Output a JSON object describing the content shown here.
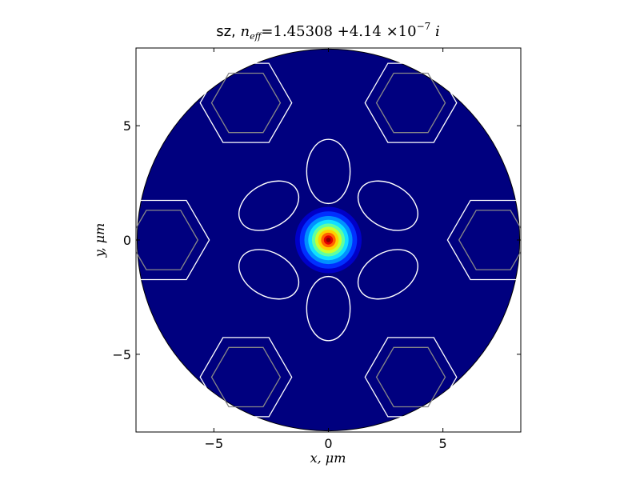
{
  "chart_data": {
    "type": "heatmap",
    "title": {
      "prefix": "sz,",
      "lhs": "n",
      "lhs_sub": "eff",
      "eq": "=",
      "real": "1.45308",
      "plus": "+",
      "imag_mantissa": "4.14",
      "times": "×",
      "base": "10",
      "exponent": "−7",
      "i": "i"
    },
    "xlabel": "x, μm",
    "ylabel": "y, μm",
    "xlim": [
      -8.4,
      8.4
    ],
    "ylim": [
      -8.4,
      8.4
    ],
    "xticks": [
      {
        "value": -5,
        "label": "−5"
      },
      {
        "value": 0,
        "label": "0"
      },
      {
        "value": 5,
        "label": "5"
      }
    ],
    "yticks": [
      {
        "value": -5,
        "label": "−5"
      },
      {
        "value": 0,
        "label": "0"
      },
      {
        "value": 5,
        "label": "5"
      }
    ],
    "grid": false,
    "colormap": "jet",
    "background_color": "#00007f",
    "cladding": {
      "center": [
        0,
        0
      ],
      "radius": 8.35
    },
    "mode_field": {
      "center": [
        0,
        0
      ],
      "peak_color": "#8b0000"
    },
    "air_holes": [
      {
        "center": [
          0,
          3.0
        ],
        "rx": 0.95,
        "ry": 1.4,
        "angle": 90
      },
      {
        "center": [
          0,
          -3.0
        ],
        "rx": 0.95,
        "ry": 1.4,
        "angle": 90
      },
      {
        "center": [
          2.6,
          1.5
        ],
        "rx": 0.95,
        "ry": 1.4,
        "angle": -30
      },
      {
        "center": [
          -2.6,
          1.5
        ],
        "rx": 0.95,
        "ry": 1.4,
        "angle": 30
      },
      {
        "center": [
          2.6,
          -1.5
        ],
        "rx": 0.95,
        "ry": 1.4,
        "angle": 30
      },
      {
        "center": [
          -2.6,
          -1.5
        ],
        "rx": 0.95,
        "ry": 1.4,
        "angle": -30
      }
    ],
    "hexagons": [
      {
        "center": [
          3.6,
          6.0
        ],
        "outer_r": 2.0,
        "inner_r": 1.5
      },
      {
        "center": [
          -3.6,
          6.0
        ],
        "outer_r": 2.0,
        "inner_r": 1.5
      },
      {
        "center": [
          7.2,
          0.0
        ],
        "outer_r": 2.0,
        "inner_r": 1.5
      },
      {
        "center": [
          -7.2,
          0.0
        ],
        "outer_r": 2.0,
        "inner_r": 1.5
      },
      {
        "center": [
          3.6,
          -6.0
        ],
        "outer_r": 2.0,
        "inner_r": 1.5
      },
      {
        "center": [
          -3.6,
          -6.0
        ],
        "outer_r": 2.0,
        "inner_r": 1.5
      }
    ],
    "colors": {
      "hex_outer": "#ffffff",
      "hex_inner": "#888888",
      "hole_outline": "#ffffff",
      "cladding_edge": "#000000"
    }
  }
}
